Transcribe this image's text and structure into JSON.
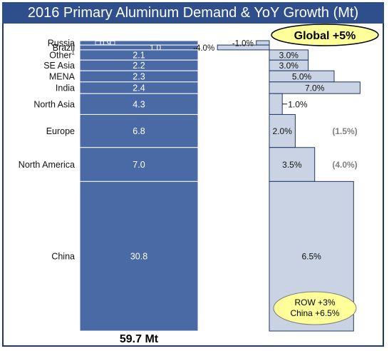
{
  "title": "2016 Primary Aluminum Demand & YoY Growth (Mt)",
  "total_label": "59.7 Mt",
  "global_callout": "Global +5%",
  "row_callout_line1": "ROW +3%",
  "row_callout_line2": "China +6.5%",
  "colors": {
    "title_bg": "#2e4f8c",
    "demand_bar": "#4a6aa5",
    "growth_bar": "#c9d3e3",
    "callout_fill": "#ffff99",
    "prior_text": "#7f7f7f"
  },
  "chart_data": {
    "type": "bar",
    "categories": [
      "Russia",
      "Brazil",
      "Other¹",
      "SE Asia",
      "MENA",
      "India",
      "North Asia",
      "Europe",
      "North America",
      "China"
    ],
    "series": [
      {
        "name": "",
        "values": [
          0.9,
          1.0,
          2.1,
          2.2,
          2.3,
          2.4,
          4.3,
          6.8,
          7.0,
          30.8
        ],
        "labels": [
          "0.9",
          "1.0",
          "2.1",
          "2.2",
          "2.3",
          "2.4",
          "4.3",
          "6.8",
          "7.0",
          "30.8"
        ]
      },
      {
        "name": "",
        "values": [
          -1.0,
          -4.0,
          3.0,
          3.0,
          5.0,
          7.0,
          1.0,
          2.0,
          3.5,
          6.5
        ],
        "labels": [
          "-1.0%",
          "-4.0%",
          "3.0%",
          "3.0%",
          "5.0%",
          "7.0%",
          "1.0%",
          "2.0%",
          "3.5%",
          "6.5%"
        ]
      }
    ],
    "prior_values": [
      {
        "category": "Europe",
        "label": "(1.5%)"
      },
      {
        "category": "North America",
        "label": "(4.0%)"
      }
    ]
  }
}
